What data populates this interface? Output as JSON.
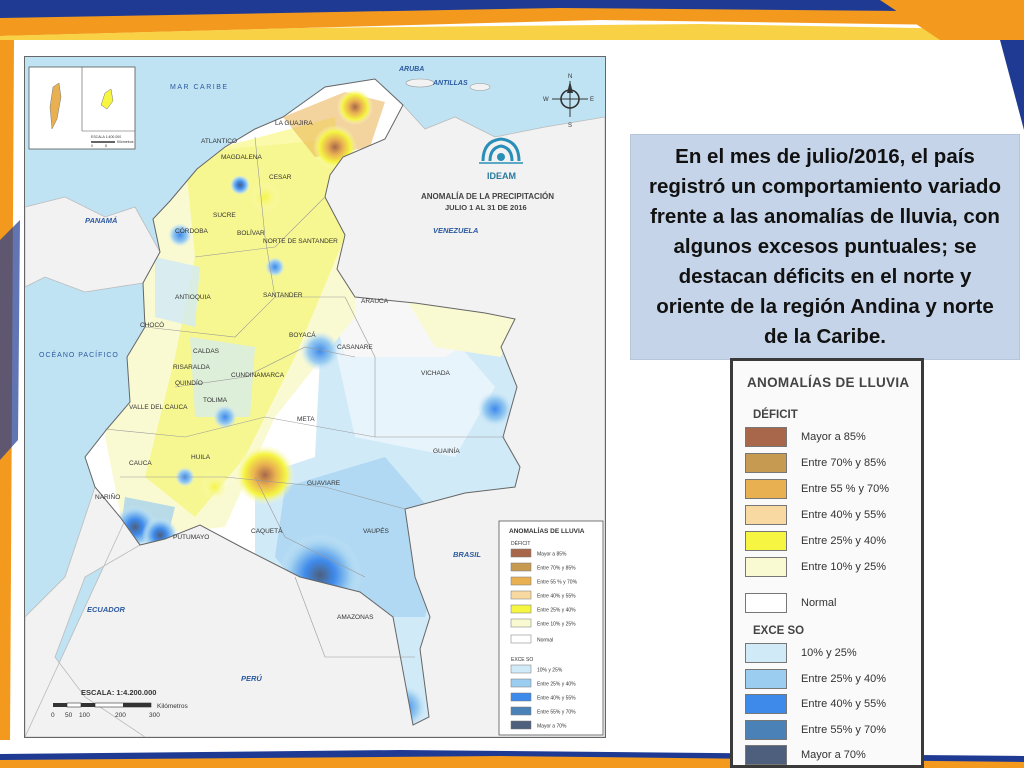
{
  "map": {
    "title_line1": "ANOMALÍA DE LA PRECIPITACIÓN",
    "title_line2": "JULIO 1 AL 31  DE 2016",
    "logo_text": "IDEAM",
    "compass": {
      "n": "N",
      "s": "S",
      "e": "E",
      "w": "W"
    },
    "scale_label": "ESCALA: 1:4.200.000",
    "scale_ticks": [
      "0",
      "50",
      "100",
      "200",
      "300"
    ],
    "scale_unit": "Kilómetros",
    "inset_scale": "ESCALA 1:400.000",
    "inset_unit": "Kilómetros",
    "inset_ticks": [
      "0",
      "8"
    ],
    "labels": {
      "mar_caribe": "MAR CARIBE",
      "aruba": "ARUBA",
      "antillas": "ANTILLAS",
      "panama": "PANAMÁ",
      "venezuela": "VENEZUELA",
      "oceano_pacifico": "OCÉANO PACÍFICO",
      "ecuador": "ECUADOR",
      "peru": "PERÚ",
      "brasil": "BRASIL",
      "la_guajira": "LA GUAJIRA",
      "atlantico": "ATLANTICO",
      "magdalena": "MAGDALENA",
      "cesar": "CESAR",
      "sucre": "SUCRE",
      "cordoba": "CÓRDOBA",
      "bolivar": "BOLÍVAR",
      "norte_santander": "NORTE DE SANTANDER",
      "antioquia": "ANTIOQUIA",
      "santander": "SANTANDER",
      "arauca": "ARAUCA",
      "choco": "CHOCÓ",
      "boyaca": "BOYACÁ",
      "casanare": "CASANARE",
      "caldas": "CALDAS",
      "risaralda": "RISARALDA",
      "quindio": "QUINDÍO",
      "cundinamarca": "CUNDINAMARCA",
      "vichada": "VICHADA",
      "tolima": "TOLIMA",
      "valle_del_cauca": "VALLE DEL CAUCA",
      "meta": "META",
      "guainia": "GUAINÍA",
      "cauca": "CAUCA",
      "huila": "HUILA",
      "guaviare": "GUAVIARE",
      "narino": "NARIÑO",
      "putumayo": "PUTUMAYO",
      "caqueta": "CAQUETÁ",
      "vaupes": "VAUPÉS",
      "amazonas": "AMAZONAS"
    },
    "legend": {
      "title": "ANOMALÍAS DE LLUVIA",
      "deficit_label": "DÉFICIT",
      "exceso_label": "EXCE SO",
      "deficit_items": [
        {
          "label": "Mayor a 85%",
          "color": "#a8674a"
        },
        {
          "label": "Entre 70% y 85%",
          "color": "#c79a52"
        },
        {
          "label": "Entre 55 % y 70%",
          "color": "#e9b051"
        },
        {
          "label": "Entre 40%  y 55%",
          "color": "#f8d9a2"
        },
        {
          "label": "Entre 25% y 40%",
          "color": "#f5f542"
        },
        {
          "label": "Entre 10% y 25%",
          "color": "#fafad2"
        }
      ],
      "normal": {
        "label": "Normal",
        "color": "#ffffff"
      },
      "exceso_items": [
        {
          "label": "10% y 25%",
          "color": "#d1eaf8"
        },
        {
          "label": "Entre 25% y 40%",
          "color": "#9bcdf0"
        },
        {
          "label": "Entre 40% y 55%",
          "color": "#3e8aeb"
        },
        {
          "label": "Entre 55% y 70%",
          "color": "#4a82b8"
        },
        {
          "label": "Mayor a 70%",
          "color": "#4d5f7c"
        }
      ]
    }
  },
  "callout": {
    "text": "En el mes de julio/2016, el país registró un comportamiento variado frente a las anomalías de lluvia, con algunos excesos puntuales; se destacan déficits en el norte y oriente de la región Andina y norte de la Caribe."
  },
  "big_legend": {
    "title": "ANOMALÍAS DE LLUVIA",
    "deficit_label": "DÉFICIT",
    "exceso_label": "EXCE SO",
    "deficit_items": [
      {
        "label": "Mayor a 85%",
        "color": "#a8674a"
      },
      {
        "label": "Entre 70% y 85%",
        "color": "#c79a52"
      },
      {
        "label": "Entre 55 % y 70%",
        "color": "#e9b051"
      },
      {
        "label": "Entre 40%  y 55%",
        "color": "#f8d9a2"
      },
      {
        "label": "Entre 25% y 40%",
        "color": "#f5f542"
      },
      {
        "label": "Entre 10% y 25%",
        "color": "#fafad2"
      }
    ],
    "normal": {
      "label": "Normal",
      "color": "#ffffff"
    },
    "exceso_items": [
      {
        "label": "10% y 25%",
        "color": "#d1eaf8"
      },
      {
        "label": "Entre 25% y 40%",
        "color": "#9bcdf0"
      },
      {
        "label": "Entre 40% y 55%",
        "color": "#3e8aeb"
      },
      {
        "label": "Entre 55% y 70%",
        "color": "#4a82b8"
      },
      {
        "label": "Mayor a 70%",
        "color": "#4d5f7c"
      }
    ]
  },
  "theme": {
    "band_orange": "#f39a1e",
    "band_navy": "#1f3a93",
    "band_yellow": "#f7c516",
    "sea": "#bfe3f3",
    "neighbor_land": "#f2f2f2",
    "colombia_base": "#ffffff"
  }
}
